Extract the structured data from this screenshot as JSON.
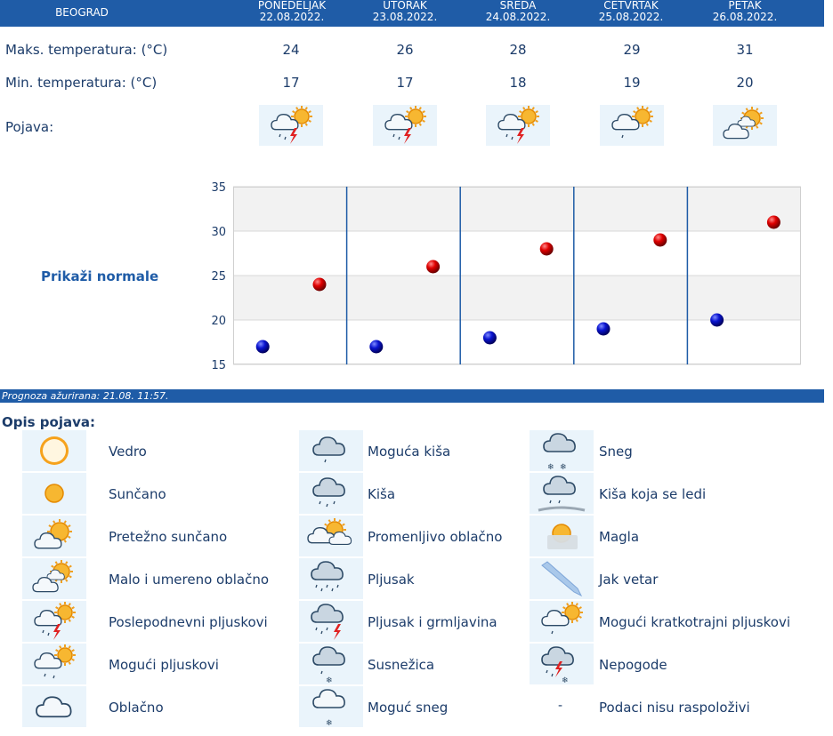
{
  "header": {
    "city": "BEOGRAD",
    "days": [
      {
        "name": "PONEDELJAK",
        "date": "22.08.2022."
      },
      {
        "name": "UTORAK",
        "date": "23.08.2022."
      },
      {
        "name": "SREDA",
        "date": "24.08.2022."
      },
      {
        "name": "ČETVRTAK",
        "date": "25.08.2022."
      },
      {
        "name": "PETAK",
        "date": "26.08.2022."
      }
    ]
  },
  "rows": {
    "max_label": "Maks. temperatura: (°C)",
    "min_label": "Min. temperatura: (°C)",
    "pojava_label": "Pojava:",
    "max": [
      "24",
      "26",
      "28",
      "29",
      "31"
    ],
    "min": [
      "17",
      "17",
      "18",
      "19",
      "20"
    ],
    "pojava_icons": [
      "poslepodnevni-pljuskovi-icon",
      "poslepodnevni-pljuskovi-icon",
      "poslepodnevni-pljuskovi-icon",
      "moguci-kratkotrajni-pljuskovi-icon",
      "malo-i-umereno-oblacno-icon"
    ]
  },
  "normale_link": "Prikaži normale",
  "chart_data": {
    "type": "scatter",
    "categories": [
      "22.08.2022.",
      "23.08.2022.",
      "24.08.2022.",
      "25.08.2022.",
      "26.08.2022."
    ],
    "series": [
      {
        "name": "Maks. temperatura",
        "color": "#cc0000",
        "values": [
          24,
          26,
          28,
          29,
          31
        ]
      },
      {
        "name": "Min. temperatura",
        "color": "#0000bb",
        "values": [
          17,
          17,
          18,
          19,
          20
        ]
      }
    ],
    "ylim": [
      15,
      35
    ],
    "yticks": [
      "15",
      "20",
      "25",
      "30",
      "35"
    ],
    "title": "",
    "xlabel": "",
    "ylabel": ""
  },
  "updated": "Prognoza ažurirana:  21.08. 11:57.",
  "legend": {
    "title": "Opis pojava:",
    "items": [
      {
        "label": "Vedro",
        "icon": "vedro-icon"
      },
      {
        "label": "Sunčano",
        "icon": "suncano-icon"
      },
      {
        "label": "Pretežno sunčano",
        "icon": "pretezno-suncano-icon"
      },
      {
        "label": "Malo i umereno oblačno",
        "icon": "malo-i-umereno-oblacno-icon"
      },
      {
        "label": "Poslepodnevni pljuskovi",
        "icon": "poslepodnevni-pljuskovi-icon"
      },
      {
        "label": "Mogući pljuskovi",
        "icon": "moguci-pljuskovi-icon"
      },
      {
        "label": "Oblačno",
        "icon": "oblacno-icon"
      },
      {
        "label": "Moguća kiša",
        "icon": "moguca-kisa-icon"
      },
      {
        "label": "Kiša",
        "icon": "kisa-icon"
      },
      {
        "label": "Promenljivo oblačno",
        "icon": "promenljivo-oblacno-icon"
      },
      {
        "label": "Pljusak",
        "icon": "pljusak-icon"
      },
      {
        "label": "Pljusak i grmljavina",
        "icon": "pljusak-i-grmljavina-icon"
      },
      {
        "label": "Susnežica",
        "icon": "susnezica-icon"
      },
      {
        "label": "Moguć sneg",
        "icon": "moguc-sneg-icon"
      },
      {
        "label": "Sneg",
        "icon": "sneg-icon"
      },
      {
        "label": "Kiša koja se ledi",
        "icon": "kisa-koja-se-ledi-icon"
      },
      {
        "label": "Magla",
        "icon": "magla-icon"
      },
      {
        "label": "Jak vetar",
        "icon": "jak-vetar-icon"
      },
      {
        "label": "Mogući kratkotrajni pljuskovi",
        "icon": "moguci-kratkotrajni-pljuskovi-icon"
      },
      {
        "label": "Nepogode",
        "icon": "nepogode-icon"
      },
      {
        "label": "Podaci nisu raspoloživi",
        "icon": "dash"
      }
    ]
  },
  "colors": {
    "header_bg": "#1f5ca7",
    "text": "#1c3c6a",
    "icon_bg": "#eaf4fb"
  }
}
